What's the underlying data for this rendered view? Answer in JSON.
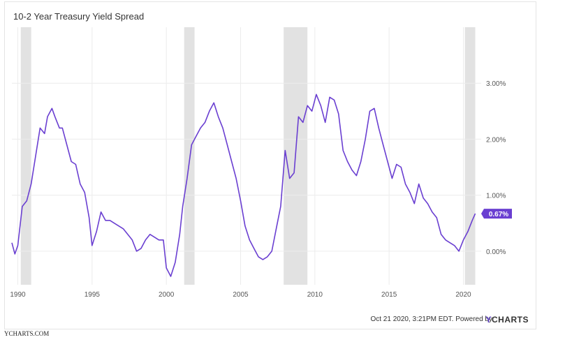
{
  "chart_data": {
    "type": "line",
    "title": "10-2 Year Treasury Yield Spread",
    "x_ticks": [
      "1990",
      "1995",
      "2000",
      "2005",
      "2010",
      "2015",
      "2020"
    ],
    "y_ticks": [
      "0.00%",
      "1.00%",
      "2.00%",
      "3.00%"
    ],
    "xlim": [
      1989.6,
      2021.2
    ],
    "ylim": [
      -0.6,
      4.0
    ],
    "grid": true,
    "last_value_label": "0.67%",
    "recessions": [
      [
        1990.2,
        1990.9
      ],
      [
        2001.2,
        2001.9
      ],
      [
        2007.9,
        2009.5
      ],
      [
        2020.1,
        2020.8
      ]
    ],
    "series": [
      {
        "color": "#6a3fd1",
        "x": [
          1989.6,
          1989.8,
          1990.0,
          1990.3,
          1990.6,
          1990.9,
          1991.2,
          1991.5,
          1991.8,
          1992.0,
          1992.3,
          1992.5,
          1992.8,
          1993.0,
          1993.3,
          1993.6,
          1993.9,
          1994.2,
          1994.5,
          1994.8,
          1995.0,
          1995.3,
          1995.6,
          1995.9,
          1996.2,
          1996.5,
          1996.8,
          1997.1,
          1997.4,
          1997.7,
          1998.0,
          1998.3,
          1998.6,
          1998.9,
          1999.2,
          1999.5,
          1999.8,
          2000.0,
          2000.3,
          2000.6,
          2000.9,
          2001.1,
          2001.4,
          2001.7,
          2002.0,
          2002.3,
          2002.6,
          2002.9,
          2003.2,
          2003.5,
          2003.8,
          2004.1,
          2004.4,
          2004.7,
          2005.0,
          2005.3,
          2005.6,
          2005.9,
          2006.2,
          2006.5,
          2006.8,
          2007.1,
          2007.4,
          2007.7,
          2008.0,
          2008.3,
          2008.6,
          2008.9,
          2009.2,
          2009.5,
          2009.8,
          2010.1,
          2010.4,
          2010.7,
          2011.0,
          2011.3,
          2011.6,
          2011.9,
          2012.2,
          2012.5,
          2012.8,
          2013.1,
          2013.4,
          2013.7,
          2014.0,
          2014.3,
          2014.6,
          2014.9,
          2015.2,
          2015.5,
          2015.8,
          2016.1,
          2016.4,
          2016.7,
          2017.0,
          2017.3,
          2017.6,
          2017.9,
          2018.2,
          2018.5,
          2018.8,
          2019.1,
          2019.4,
          2019.7,
          2020.0,
          2020.3,
          2020.6,
          2020.8
        ],
        "values": [
          0.15,
          -0.05,
          0.1,
          0.8,
          0.9,
          1.2,
          1.7,
          2.2,
          2.1,
          2.4,
          2.55,
          2.4,
          2.2,
          2.2,
          1.9,
          1.6,
          1.55,
          1.2,
          1.05,
          0.6,
          0.1,
          0.35,
          0.7,
          0.55,
          0.55,
          0.5,
          0.45,
          0.4,
          0.3,
          0.2,
          0.0,
          0.05,
          0.2,
          0.3,
          0.25,
          0.2,
          0.2,
          -0.3,
          -0.45,
          -0.2,
          0.3,
          0.8,
          1.3,
          1.9,
          2.05,
          2.2,
          2.3,
          2.5,
          2.65,
          2.4,
          2.2,
          1.9,
          1.6,
          1.3,
          0.9,
          0.45,
          0.2,
          0.05,
          -0.1,
          -0.15,
          -0.1,
          0.0,
          0.4,
          0.8,
          1.8,
          1.3,
          1.4,
          2.4,
          2.3,
          2.6,
          2.5,
          2.8,
          2.6,
          2.3,
          2.75,
          2.7,
          2.45,
          1.8,
          1.6,
          1.45,
          1.35,
          1.6,
          2.0,
          2.5,
          2.55,
          2.2,
          1.9,
          1.6,
          1.3,
          1.55,
          1.5,
          1.2,
          1.05,
          0.85,
          1.2,
          0.95,
          0.85,
          0.7,
          0.6,
          0.3,
          0.2,
          0.15,
          0.1,
          0.0,
          0.2,
          0.35,
          0.55,
          0.67
        ]
      }
    ]
  },
  "footer": {
    "timestamp": "Oct 21 2020, 3:21PM EDT.",
    "powered": "Powered by",
    "brand_y": "Y",
    "brand_rest": "CHARTS"
  },
  "credit": "YCHARTS.COM"
}
